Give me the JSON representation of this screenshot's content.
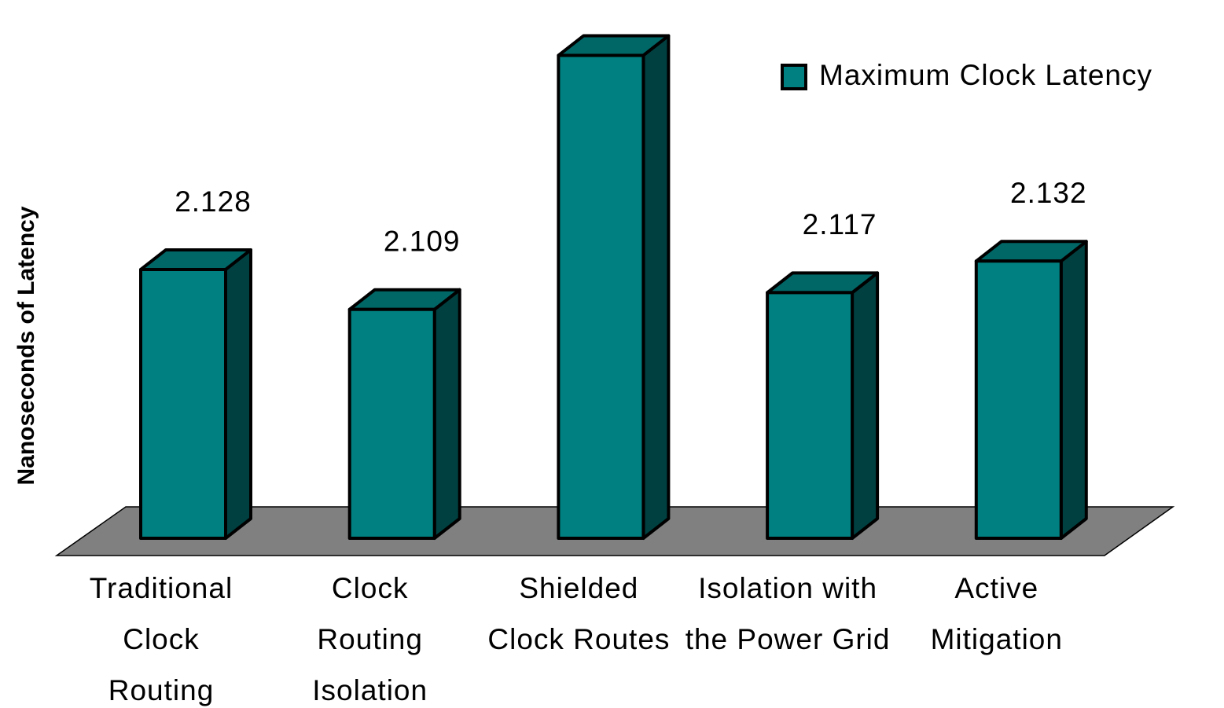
{
  "chart_data": {
    "type": "bar3d",
    "y_label": "Nanoseconds of Latency",
    "categories": [
      "Traditional Clock Routing",
      "Clock Routing Isolation",
      "Shielded Clock Routes",
      "Isolation with the Power Grid",
      "Active Mitigation"
    ],
    "series": [
      {
        "name": "Maximum Clock Latency",
        "color": "#008080",
        "values": [
          2.128,
          2.109,
          2.23,
          2.117,
          2.132
        ]
      }
    ],
    "ylim": [
      2,
      2.25
    ],
    "legend": "upper right"
  }
}
